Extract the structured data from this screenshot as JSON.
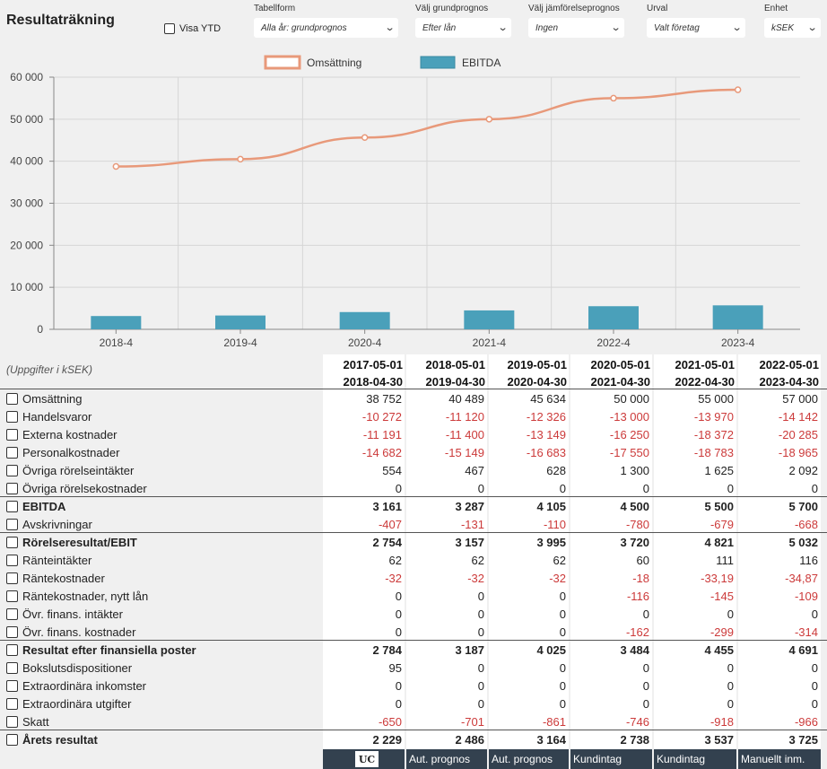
{
  "page": {
    "title": "Resultaträkning"
  },
  "controls": {
    "ytd_label": "Visa YTD",
    "tabellform": {
      "label": "Tabellform",
      "value": "Alla år: grundprognos"
    },
    "grundprognos": {
      "label": "Välj grundprognos",
      "value": "Efter lån"
    },
    "jamforelse": {
      "label": "Välj jämförelseprognos",
      "value": "Ingen"
    },
    "urval": {
      "label": "Urval",
      "value": "Valt företag"
    },
    "enhet": {
      "label": "Enhet",
      "value": "kSEK"
    }
  },
  "chart_data": {
    "type": "bar+line",
    "categories": [
      "2018-4",
      "2019-4",
      "2020-4",
      "2021-4",
      "2022-4",
      "2023-4"
    ],
    "series": [
      {
        "name": "Omsättning",
        "type": "line",
        "color": "#e8997a",
        "values": [
          38752,
          40489,
          45634,
          50000,
          55000,
          57000
        ]
      },
      {
        "name": "EBITDA",
        "type": "bar",
        "color": "#4aa0ba",
        "values": [
          3161,
          3287,
          4105,
          4500,
          5500,
          5700
        ]
      }
    ],
    "yticks": [
      "60 000",
      "50 000",
      "40 000",
      "30 000",
      "20 000",
      "10 000",
      "0"
    ],
    "ylim": [
      0,
      60000
    ],
    "grid": true,
    "legend": "top"
  },
  "table": {
    "unit_note": "(Uppgifter i kSEK)",
    "periods": [
      {
        "start": "2017-05-01",
        "end": "2018-04-30"
      },
      {
        "start": "2018-05-01",
        "end": "2019-04-30"
      },
      {
        "start": "2019-05-01",
        "end": "2020-04-30"
      },
      {
        "start": "2020-05-01",
        "end": "2021-04-30"
      },
      {
        "start": "2021-05-01",
        "end": "2022-04-30"
      },
      {
        "start": "2022-05-01",
        "end": "2023-04-30"
      }
    ],
    "rows": [
      {
        "label": "Omsättning",
        "bold": false,
        "values": [
          "38 752",
          "40 489",
          "45 634",
          "50 000",
          "55 000",
          "57 000"
        ]
      },
      {
        "label": "Handelsvaror",
        "bold": false,
        "values": [
          "-10 272",
          "-11 120",
          "-12 326",
          "-13 000",
          "-13 970",
          "-14 142"
        ]
      },
      {
        "label": "Externa kostnader",
        "bold": false,
        "values": [
          "-11 191",
          "-11 400",
          "-13 149",
          "-16 250",
          "-18 372",
          "-20 285"
        ]
      },
      {
        "label": "Personalkostnader",
        "bold": false,
        "values": [
          "-14 682",
          "-15 149",
          "-16 683",
          "-17 550",
          "-18 783",
          "-18 965"
        ]
      },
      {
        "label": "Övriga rörelseintäkter",
        "bold": false,
        "values": [
          "554",
          "467",
          "628",
          "1 300",
          "1 625",
          "2 092"
        ]
      },
      {
        "label": "Övriga rörelsekostnader",
        "bold": false,
        "values": [
          "0",
          "0",
          "0",
          "0",
          "0",
          "0"
        ]
      },
      {
        "label": "EBITDA",
        "bold": true,
        "values": [
          "3 161",
          "3 287",
          "4 105",
          "4 500",
          "5 500",
          "5 700"
        ]
      },
      {
        "label": "Avskrivningar",
        "bold": false,
        "values": [
          "-407",
          "-131",
          "-110",
          "-780",
          "-679",
          "-668"
        ]
      },
      {
        "label": "Rörelseresultat/EBIT",
        "bold": true,
        "values": [
          "2 754",
          "3 157",
          "3 995",
          "3 720",
          "4 821",
          "5 032"
        ]
      },
      {
        "label": "Ränteintäkter",
        "bold": false,
        "values": [
          "62",
          "62",
          "62",
          "60",
          "111",
          "116"
        ]
      },
      {
        "label": "Räntekostnader",
        "bold": false,
        "values": [
          "-32",
          "-32",
          "-32",
          "-18",
          "-33,19",
          "-34,87"
        ]
      },
      {
        "label": "Räntekostnader, nytt lån",
        "bold": false,
        "values": [
          "0",
          "0",
          "0",
          "-116",
          "-145",
          "-109"
        ]
      },
      {
        "label": "Övr. finans. intäkter",
        "bold": false,
        "values": [
          "0",
          "0",
          "0",
          "0",
          "0",
          "0"
        ]
      },
      {
        "label": "Övr. finans. kostnader",
        "bold": false,
        "values": [
          "0",
          "0",
          "0",
          "-162",
          "-299",
          "-314"
        ]
      },
      {
        "label": "Resultat efter finansiella poster",
        "bold": true,
        "values": [
          "2 784",
          "3 187",
          "4 025",
          "3 484",
          "4 455",
          "4 691"
        ]
      },
      {
        "label": "Bokslutsdispositioner",
        "bold": false,
        "values": [
          "95",
          "0",
          "0",
          "0",
          "0",
          "0"
        ]
      },
      {
        "label": "Extraordinära inkomster",
        "bold": false,
        "values": [
          "0",
          "0",
          "0",
          "0",
          "0",
          "0"
        ]
      },
      {
        "label": "Extraordinära utgifter",
        "bold": false,
        "values": [
          "0",
          "0",
          "0",
          "0",
          "0",
          "0"
        ]
      },
      {
        "label": "Skatt",
        "bold": false,
        "values": [
          "-650",
          "-701",
          "-861",
          "-746",
          "-918",
          "-966"
        ]
      },
      {
        "label": "Årets resultat",
        "bold": true,
        "values": [
          "2 229",
          "2 486",
          "3 164",
          "2 738",
          "3 537",
          "3 725"
        ]
      }
    ],
    "sources": [
      "UC",
      "Aut. prognos",
      "Aut. prognos",
      "Kundintag",
      "Kundintag",
      "Manuellt inm."
    ]
  }
}
